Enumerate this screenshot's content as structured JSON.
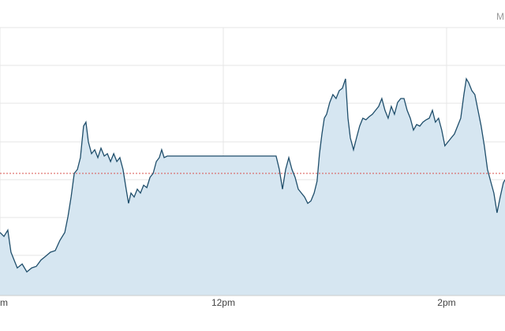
{
  "chart_data": {
    "type": "area",
    "corner_text": "M",
    "x": [
      600,
      602.1,
      604.2,
      605.9,
      607.6,
      609.3,
      611.9,
      614.4,
      617,
      619.5,
      622,
      624.6,
      627.1,
      629.7,
      632.2,
      634.8,
      636.5,
      638.2,
      639.9,
      641.6,
      643.2,
      644.9,
      646.2,
      647.5,
      649.2,
      650.9,
      652.6,
      654.3,
      656,
      657.7,
      659.4,
      661.1,
      662.8,
      664.4,
      666.1,
      667.8,
      669.1,
      670.4,
      672.1,
      673.8,
      675.5,
      677.2,
      678.9,
      680.6,
      682.3,
      684,
      685.6,
      686.9,
      688.2,
      689.9,
      748.4,
      750.1,
      751.8,
      753.5,
      755.2,
      756.9,
      758.6,
      760.3,
      762,
      763.7,
      765.4,
      767.1,
      768.8,
      770.4,
      771.7,
      773,
      774.3,
      775.5,
      777.2,
      778.9,
      780.6,
      782.3,
      784,
      785.7,
      787,
      788.3,
      790,
      791.6,
      793.3,
      795,
      796.7,
      798.4,
      800.1,
      801.8,
      803.5,
      805.2,
      806.9,
      808.6,
      810.3,
      812,
      813.7,
      815.4,
      817.1,
      818.8,
      820.5,
      822.2,
      823.9,
      825.6,
      827.3,
      829,
      830.7,
      832.4,
      834,
      835.7,
      837.4,
      839.1,
      840.8,
      842.5,
      844.2,
      845.9,
      847.6,
      849.3,
      850.6,
      851.9,
      853.6,
      855.2,
      856.9,
      858.6,
      860.3,
      862,
      863.7,
      865.4,
      867.1,
      868.8,
      870.5,
      871.4
    ],
    "values": [
      16,
      15,
      16.6,
      11,
      9,
      7,
      8,
      6,
      7,
      7.4,
      9,
      10,
      11,
      11.4,
      14,
      16,
      20,
      25,
      31,
      32,
      35,
      43,
      44,
      39,
      36,
      37,
      35,
      37.4,
      35.4,
      36,
      34,
      36,
      34,
      35,
      32,
      27,
      23.4,
      26,
      25,
      27,
      26,
      28,
      27.4,
      30,
      31,
      34,
      35,
      37,
      35,
      35.4,
      35.4,
      32,
      27,
      32,
      35,
      32,
      30,
      27,
      26,
      25,
      23.4,
      24,
      26,
      29,
      36,
      41,
      45,
      46,
      49,
      51,
      50,
      52,
      52.6,
      55,
      45,
      40,
      37,
      40,
      43,
      45,
      44.6,
      45.4,
      46,
      47,
      48,
      50,
      47,
      45,
      48,
      46,
      49,
      50,
      50,
      47,
      45,
      42,
      43.4,
      43,
      44,
      44.6,
      45,
      47,
      44,
      45,
      42,
      38,
      39,
      40,
      41,
      43,
      45,
      51,
      55,
      54,
      52,
      51,
      47,
      43,
      38,
      32,
      29,
      26,
      21,
      25,
      28.6,
      29.4
    ],
    "color": "#1f4e6b",
    "fill": "#d6e6f1",
    "reference_line": {
      "value": 31,
      "color": "#d9534f"
    },
    "xlim": [
      600,
      871.4
    ],
    "ylim": [
      0,
      68
    ],
    "xticks": [
      {
        "value": 600,
        "label": "m"
      },
      {
        "value": 720,
        "label": "12pm"
      },
      {
        "value": 840,
        "label": "2pm"
      }
    ],
    "grid": true
  }
}
